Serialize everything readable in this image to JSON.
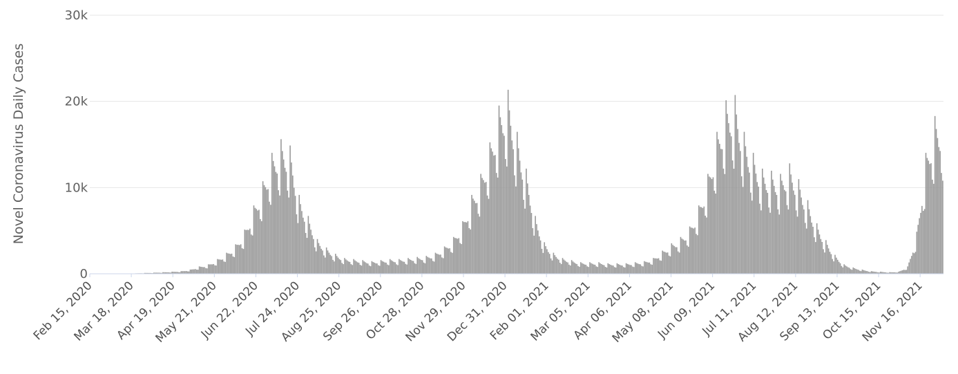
{
  "chart_data": {
    "type": "bar",
    "ylabel": "Novel Coronavirus Daily Cases",
    "xlabel": "",
    "ylim": [
      0,
      30000
    ],
    "yticks": [
      {
        "value": 0,
        "label": "0"
      },
      {
        "value": 10000,
        "label": "10k"
      },
      {
        "value": 20000,
        "label": "20k"
      },
      {
        "value": 30000,
        "label": "30k"
      }
    ],
    "x_start": "2020-02-15",
    "x_tick_labels": [
      "Feb 15, 2020",
      "Mar 18, 2020",
      "Apr 19, 2020",
      "May 21, 2020",
      "Jun 22, 2020",
      "Jul 24, 2020",
      "Aug 25, 2020",
      "Sep 26, 2020",
      "Oct 28, 2020",
      "Nov 29, 2020",
      "Dec 31, 2020",
      "Feb 01, 2021",
      "Mar 05, 2021",
      "Apr 06, 2021",
      "May 08, 2021",
      "Jun 09, 2021",
      "Jul 11, 2021",
      "Aug 12, 2021",
      "Sep 13, 2021",
      "Oct 15, 2021",
      "Nov 16, 2021"
    ],
    "grid": true,
    "bar_color": "#999999",
    "weekly_avg_values": [
      0,
      0,
      0,
      0,
      10,
      40,
      80,
      110,
      150,
      200,
      250,
      400,
      700,
      900,
      1400,
      2000,
      2800,
      4200,
      6500,
      8800,
      11500,
      12800,
      12200,
      7500,
      5500,
      3300,
      2500,
      1900,
      1500,
      1400,
      1300,
      1200,
      1300,
      1400,
      1400,
      1500,
      1600,
      1700,
      2000,
      2600,
      3500,
      5000,
      7500,
      9500,
      12500,
      16000,
      17500,
      13500,
      10000,
      5500,
      3000,
      2000,
      1500,
      1300,
      1100,
      1100,
      1100,
      1000,
      1000,
      1000,
      1100,
      1200,
      1500,
      2200,
      2900,
      3500,
      4500,
      6500,
      9500,
      13500,
      16500,
      17000,
      13500,
      11500,
      10000,
      9800,
      9500,
      10500,
      9000,
      7000,
      4800,
      3200,
      1800,
      900,
      600,
      400,
      250,
      200,
      150,
      200,
      700,
      4000,
      11500,
      15000
    ]
  }
}
